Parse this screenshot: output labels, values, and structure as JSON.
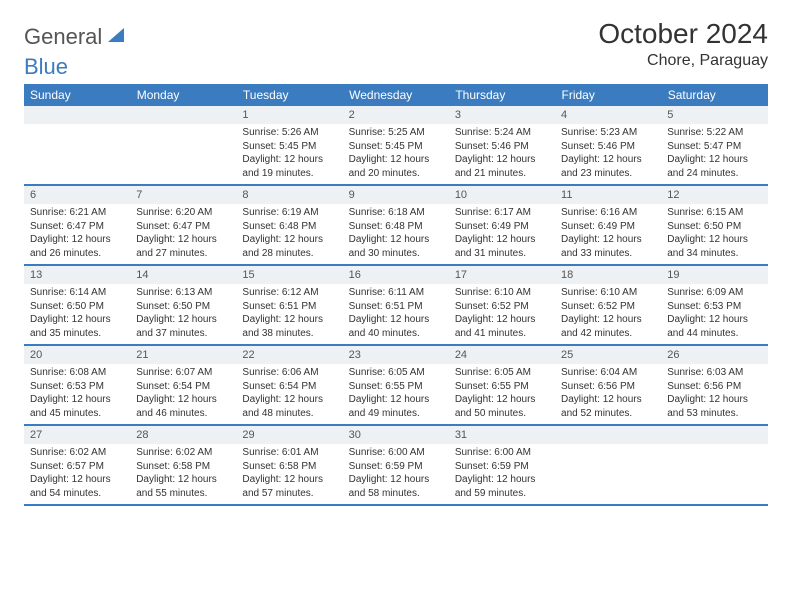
{
  "brand": {
    "name1": "General",
    "name2": "Blue"
  },
  "title": "October 2024",
  "location": "Chore, Paraguay",
  "colors": {
    "headerBg": "#3b7bbf",
    "headerText": "#ffffff",
    "dayNumBg": "#eef1f3",
    "border": "#3b7bbf"
  },
  "dayHeaders": [
    "Sunday",
    "Monday",
    "Tuesday",
    "Wednesday",
    "Thursday",
    "Friday",
    "Saturday"
  ],
  "weeks": [
    [
      {
        "n": "",
        "lines": []
      },
      {
        "n": "",
        "lines": []
      },
      {
        "n": "1",
        "lines": [
          "Sunrise: 5:26 AM",
          "Sunset: 5:45 PM",
          "Daylight: 12 hours and 19 minutes."
        ]
      },
      {
        "n": "2",
        "lines": [
          "Sunrise: 5:25 AM",
          "Sunset: 5:45 PM",
          "Daylight: 12 hours and 20 minutes."
        ]
      },
      {
        "n": "3",
        "lines": [
          "Sunrise: 5:24 AM",
          "Sunset: 5:46 PM",
          "Daylight: 12 hours and 21 minutes."
        ]
      },
      {
        "n": "4",
        "lines": [
          "Sunrise: 5:23 AM",
          "Sunset: 5:46 PM",
          "Daylight: 12 hours and 23 minutes."
        ]
      },
      {
        "n": "5",
        "lines": [
          "Sunrise: 5:22 AM",
          "Sunset: 5:47 PM",
          "Daylight: 12 hours and 24 minutes."
        ]
      }
    ],
    [
      {
        "n": "6",
        "lines": [
          "Sunrise: 6:21 AM",
          "Sunset: 6:47 PM",
          "Daylight: 12 hours and 26 minutes."
        ]
      },
      {
        "n": "7",
        "lines": [
          "Sunrise: 6:20 AM",
          "Sunset: 6:47 PM",
          "Daylight: 12 hours and 27 minutes."
        ]
      },
      {
        "n": "8",
        "lines": [
          "Sunrise: 6:19 AM",
          "Sunset: 6:48 PM",
          "Daylight: 12 hours and 28 minutes."
        ]
      },
      {
        "n": "9",
        "lines": [
          "Sunrise: 6:18 AM",
          "Sunset: 6:48 PM",
          "Daylight: 12 hours and 30 minutes."
        ]
      },
      {
        "n": "10",
        "lines": [
          "Sunrise: 6:17 AM",
          "Sunset: 6:49 PM",
          "Daylight: 12 hours and 31 minutes."
        ]
      },
      {
        "n": "11",
        "lines": [
          "Sunrise: 6:16 AM",
          "Sunset: 6:49 PM",
          "Daylight: 12 hours and 33 minutes."
        ]
      },
      {
        "n": "12",
        "lines": [
          "Sunrise: 6:15 AM",
          "Sunset: 6:50 PM",
          "Daylight: 12 hours and 34 minutes."
        ]
      }
    ],
    [
      {
        "n": "13",
        "lines": [
          "Sunrise: 6:14 AM",
          "Sunset: 6:50 PM",
          "Daylight: 12 hours and 35 minutes."
        ]
      },
      {
        "n": "14",
        "lines": [
          "Sunrise: 6:13 AM",
          "Sunset: 6:50 PM",
          "Daylight: 12 hours and 37 minutes."
        ]
      },
      {
        "n": "15",
        "lines": [
          "Sunrise: 6:12 AM",
          "Sunset: 6:51 PM",
          "Daylight: 12 hours and 38 minutes."
        ]
      },
      {
        "n": "16",
        "lines": [
          "Sunrise: 6:11 AM",
          "Sunset: 6:51 PM",
          "Daylight: 12 hours and 40 minutes."
        ]
      },
      {
        "n": "17",
        "lines": [
          "Sunrise: 6:10 AM",
          "Sunset: 6:52 PM",
          "Daylight: 12 hours and 41 minutes."
        ]
      },
      {
        "n": "18",
        "lines": [
          "Sunrise: 6:10 AM",
          "Sunset: 6:52 PM",
          "Daylight: 12 hours and 42 minutes."
        ]
      },
      {
        "n": "19",
        "lines": [
          "Sunrise: 6:09 AM",
          "Sunset: 6:53 PM",
          "Daylight: 12 hours and 44 minutes."
        ]
      }
    ],
    [
      {
        "n": "20",
        "lines": [
          "Sunrise: 6:08 AM",
          "Sunset: 6:53 PM",
          "Daylight: 12 hours and 45 minutes."
        ]
      },
      {
        "n": "21",
        "lines": [
          "Sunrise: 6:07 AM",
          "Sunset: 6:54 PM",
          "Daylight: 12 hours and 46 minutes."
        ]
      },
      {
        "n": "22",
        "lines": [
          "Sunrise: 6:06 AM",
          "Sunset: 6:54 PM",
          "Daylight: 12 hours and 48 minutes."
        ]
      },
      {
        "n": "23",
        "lines": [
          "Sunrise: 6:05 AM",
          "Sunset: 6:55 PM",
          "Daylight: 12 hours and 49 minutes."
        ]
      },
      {
        "n": "24",
        "lines": [
          "Sunrise: 6:05 AM",
          "Sunset: 6:55 PM",
          "Daylight: 12 hours and 50 minutes."
        ]
      },
      {
        "n": "25",
        "lines": [
          "Sunrise: 6:04 AM",
          "Sunset: 6:56 PM",
          "Daylight: 12 hours and 52 minutes."
        ]
      },
      {
        "n": "26",
        "lines": [
          "Sunrise: 6:03 AM",
          "Sunset: 6:56 PM",
          "Daylight: 12 hours and 53 minutes."
        ]
      }
    ],
    [
      {
        "n": "27",
        "lines": [
          "Sunrise: 6:02 AM",
          "Sunset: 6:57 PM",
          "Daylight: 12 hours and 54 minutes."
        ]
      },
      {
        "n": "28",
        "lines": [
          "Sunrise: 6:02 AM",
          "Sunset: 6:58 PM",
          "Daylight: 12 hours and 55 minutes."
        ]
      },
      {
        "n": "29",
        "lines": [
          "Sunrise: 6:01 AM",
          "Sunset: 6:58 PM",
          "Daylight: 12 hours and 57 minutes."
        ]
      },
      {
        "n": "30",
        "lines": [
          "Sunrise: 6:00 AM",
          "Sunset: 6:59 PM",
          "Daylight: 12 hours and 58 minutes."
        ]
      },
      {
        "n": "31",
        "lines": [
          "Sunrise: 6:00 AM",
          "Sunset: 6:59 PM",
          "Daylight: 12 hours and 59 minutes."
        ]
      },
      {
        "n": "",
        "lines": []
      },
      {
        "n": "",
        "lines": []
      }
    ]
  ]
}
